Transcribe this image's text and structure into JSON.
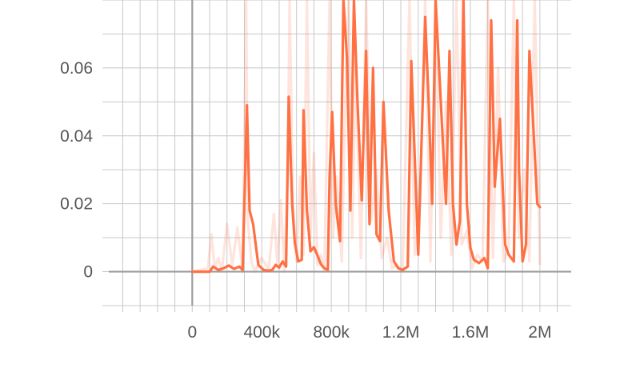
{
  "chart_data": {
    "type": "line",
    "title": "",
    "xlabel": "",
    "ylabel": "",
    "xlim": [
      -480000,
      2180000
    ],
    "ylim": [
      -0.01,
      0.08
    ],
    "x_ticks": [
      {
        "value": 0,
        "label": "0"
      },
      {
        "value": 400000,
        "label": "400k"
      },
      {
        "value": 800000,
        "label": "800k"
      },
      {
        "value": 1200000,
        "label": "1.2M"
      },
      {
        "value": 1600000,
        "label": "1.6M"
      },
      {
        "value": 2000000,
        "label": "2M"
      }
    ],
    "y_ticks": [
      {
        "value": 0,
        "label": "0"
      },
      {
        "value": 0.02,
        "label": "0.02"
      },
      {
        "value": 0.04,
        "label": "0.04"
      },
      {
        "value": 0.06,
        "label": "0.06"
      }
    ],
    "grid": true,
    "colors": {
      "series": "#ff7043",
      "raw": "#fc6a3c",
      "grid": "#c8c8c8",
      "axis": "#9e9e9e"
    },
    "series": [
      {
        "style": "smoothed",
        "x": [
          0,
          100000,
          120000,
          150000,
          180000,
          210000,
          240000,
          270000,
          290000,
          315000,
          330000,
          350000,
          380000,
          410000,
          440000,
          460000,
          480000,
          500000,
          520000,
          540000,
          555000,
          575000,
          590000,
          610000,
          630000,
          640000,
          660000,
          680000,
          700000,
          720000,
          740000,
          760000,
          780000,
          790000,
          805000,
          825000,
          850000,
          870000,
          890000,
          910000,
          930000,
          950000,
          975000,
          1000000,
          1020000,
          1040000,
          1060000,
          1080000,
          1100000,
          1130000,
          1160000,
          1185000,
          1210000,
          1240000,
          1260000,
          1300000,
          1340000,
          1360000,
          1380000,
          1400000,
          1430000,
          1460000,
          1480000,
          1500000,
          1520000,
          1540000,
          1560000,
          1580000,
          1600000,
          1620000,
          1650000,
          1680000,
          1700000,
          1720000,
          1740000,
          1770000,
          1800000,
          1820000,
          1850000,
          1870000,
          1880000,
          1900000,
          1920000,
          1940000,
          1960000,
          1985000,
          2000000
        ],
        "y": [
          0,
          0,
          0.0015,
          0.0005,
          0.001,
          0.0018,
          0.0008,
          0.0015,
          0.0005,
          0.049,
          0.018,
          0.014,
          0.002,
          0.0005,
          0.0003,
          0.0005,
          0.002,
          0.0012,
          0.003,
          0.0015,
          0.0515,
          0.02,
          0.0085,
          0.003,
          0.0035,
          0.0475,
          0.018,
          0.006,
          0.0072,
          0.0048,
          0.0022,
          0.001,
          0.0005,
          0.028,
          0.047,
          0.02,
          0.009,
          0.08,
          0.063,
          0.018,
          0.08,
          0.051,
          0.021,
          0.065,
          0.014,
          0.06,
          0.011,
          0.009,
          0.05,
          0.018,
          0.003,
          0.001,
          0.0005,
          0.0015,
          0.062,
          0.005,
          0.075,
          0.05,
          0.02,
          0.08,
          0.05,
          0.02,
          0.065,
          0.02,
          0.008,
          0.015,
          0.08,
          0.02,
          0.007,
          0.0035,
          0.0025,
          0.004,
          0.001,
          0.074,
          0.025,
          0.045,
          0.008,
          0.005,
          0.003,
          0.074,
          0.03,
          0.003,
          0.008,
          0.065,
          0.045,
          0.02,
          0.019
        ]
      },
      {
        "style": "raw",
        "x": [
          0,
          90000,
          110000,
          130000,
          150000,
          170000,
          200000,
          230000,
          260000,
          290000,
          310000,
          320000,
          340000,
          360000,
          400000,
          440000,
          470000,
          490000,
          510000,
          530000,
          550000,
          560000,
          580000,
          600000,
          620000,
          640000,
          660000,
          680000,
          700000,
          720000,
          740000,
          760000,
          790000,
          810000,
          830000,
          860000,
          880000,
          900000,
          920000,
          940000,
          970000,
          1000000,
          1030000,
          1060000,
          1090000,
          1120000,
          1150000,
          1180000,
          1210000,
          1250000,
          1280000,
          1310000,
          1340000,
          1370000,
          1400000,
          1430000,
          1460000,
          1490000,
          1520000,
          1550000,
          1580000,
          1610000,
          1640000,
          1670000,
          1700000,
          1730000,
          1760000,
          1790000,
          1820000,
          1850000,
          1880000,
          1910000,
          1940000,
          1970000,
          2000000
        ],
        "y": [
          0,
          0.001,
          0.011,
          0.001,
          0.004,
          0.0,
          0.014,
          0.002,
          0.013,
          0.0,
          0.08,
          0.015,
          0.003,
          0.0,
          0.004,
          0.0005,
          0.017,
          0.002,
          0.021,
          0.0,
          0.03,
          0.08,
          0.02,
          0.003,
          0.028,
          0.005,
          0.08,
          0.01,
          0.035,
          0.002,
          0.005,
          0.0,
          0.08,
          0.01,
          0.028,
          0.003,
          0.05,
          0.08,
          0.01,
          0.062,
          0.004,
          0.08,
          0.015,
          0.03,
          0.004,
          0.01,
          0.001,
          0.002,
          0.0,
          0.08,
          0.005,
          0.02,
          0.08,
          0.003,
          0.08,
          0.01,
          0.05,
          0.005,
          0.08,
          0.008,
          0.012,
          0.001,
          0.005,
          0.003,
          0.08,
          0.004,
          0.06,
          0.003,
          0.007,
          0.08,
          0.01,
          0.03,
          0.003,
          0.08,
          0.002
        ]
      }
    ]
  }
}
